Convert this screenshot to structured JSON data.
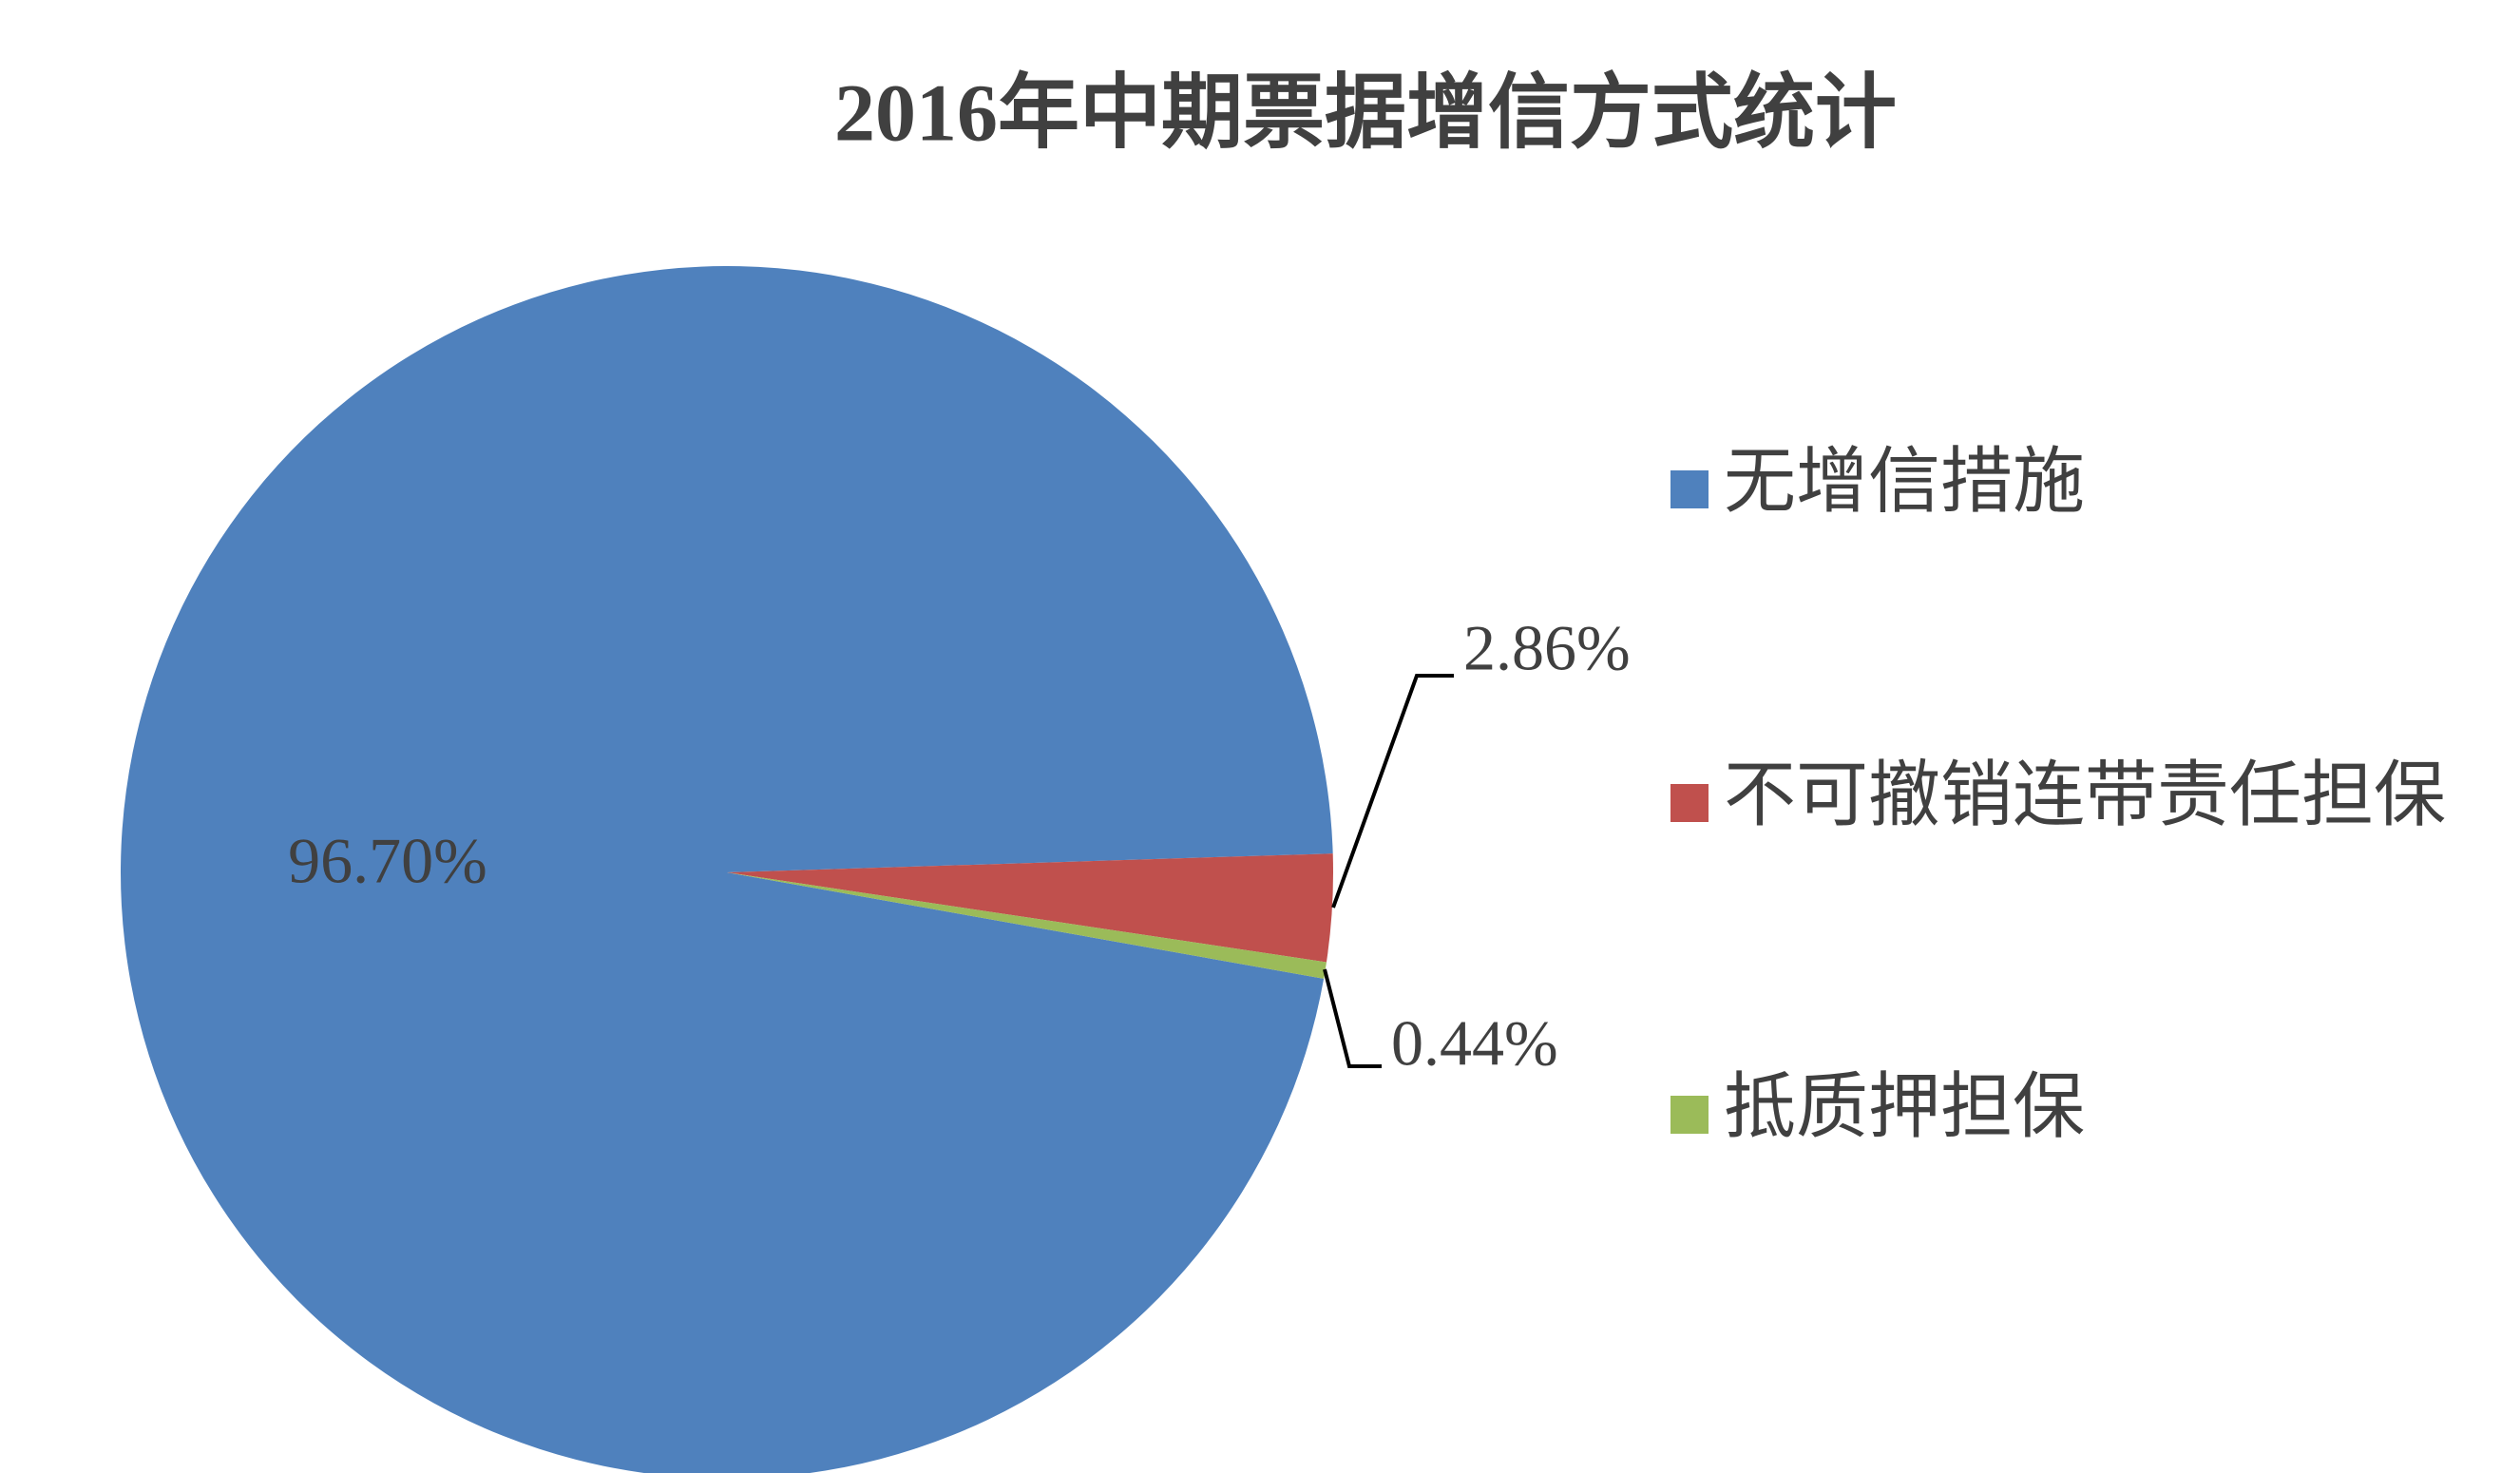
{
  "chart_data": {
    "type": "pie",
    "title": "2016年中期票据增信方式统计",
    "categories": [
      "无增信措施",
      "不可撤销连带责任担保",
      "抵质押担保"
    ],
    "values": [
      96.7,
      2.86,
      0.44
    ],
    "value_labels": [
      "96.70%",
      "2.86%",
      "0.44%"
    ],
    "colors": [
      "#4f81bd",
      "#c0504d",
      "#9bbb59"
    ],
    "legend": "right"
  }
}
